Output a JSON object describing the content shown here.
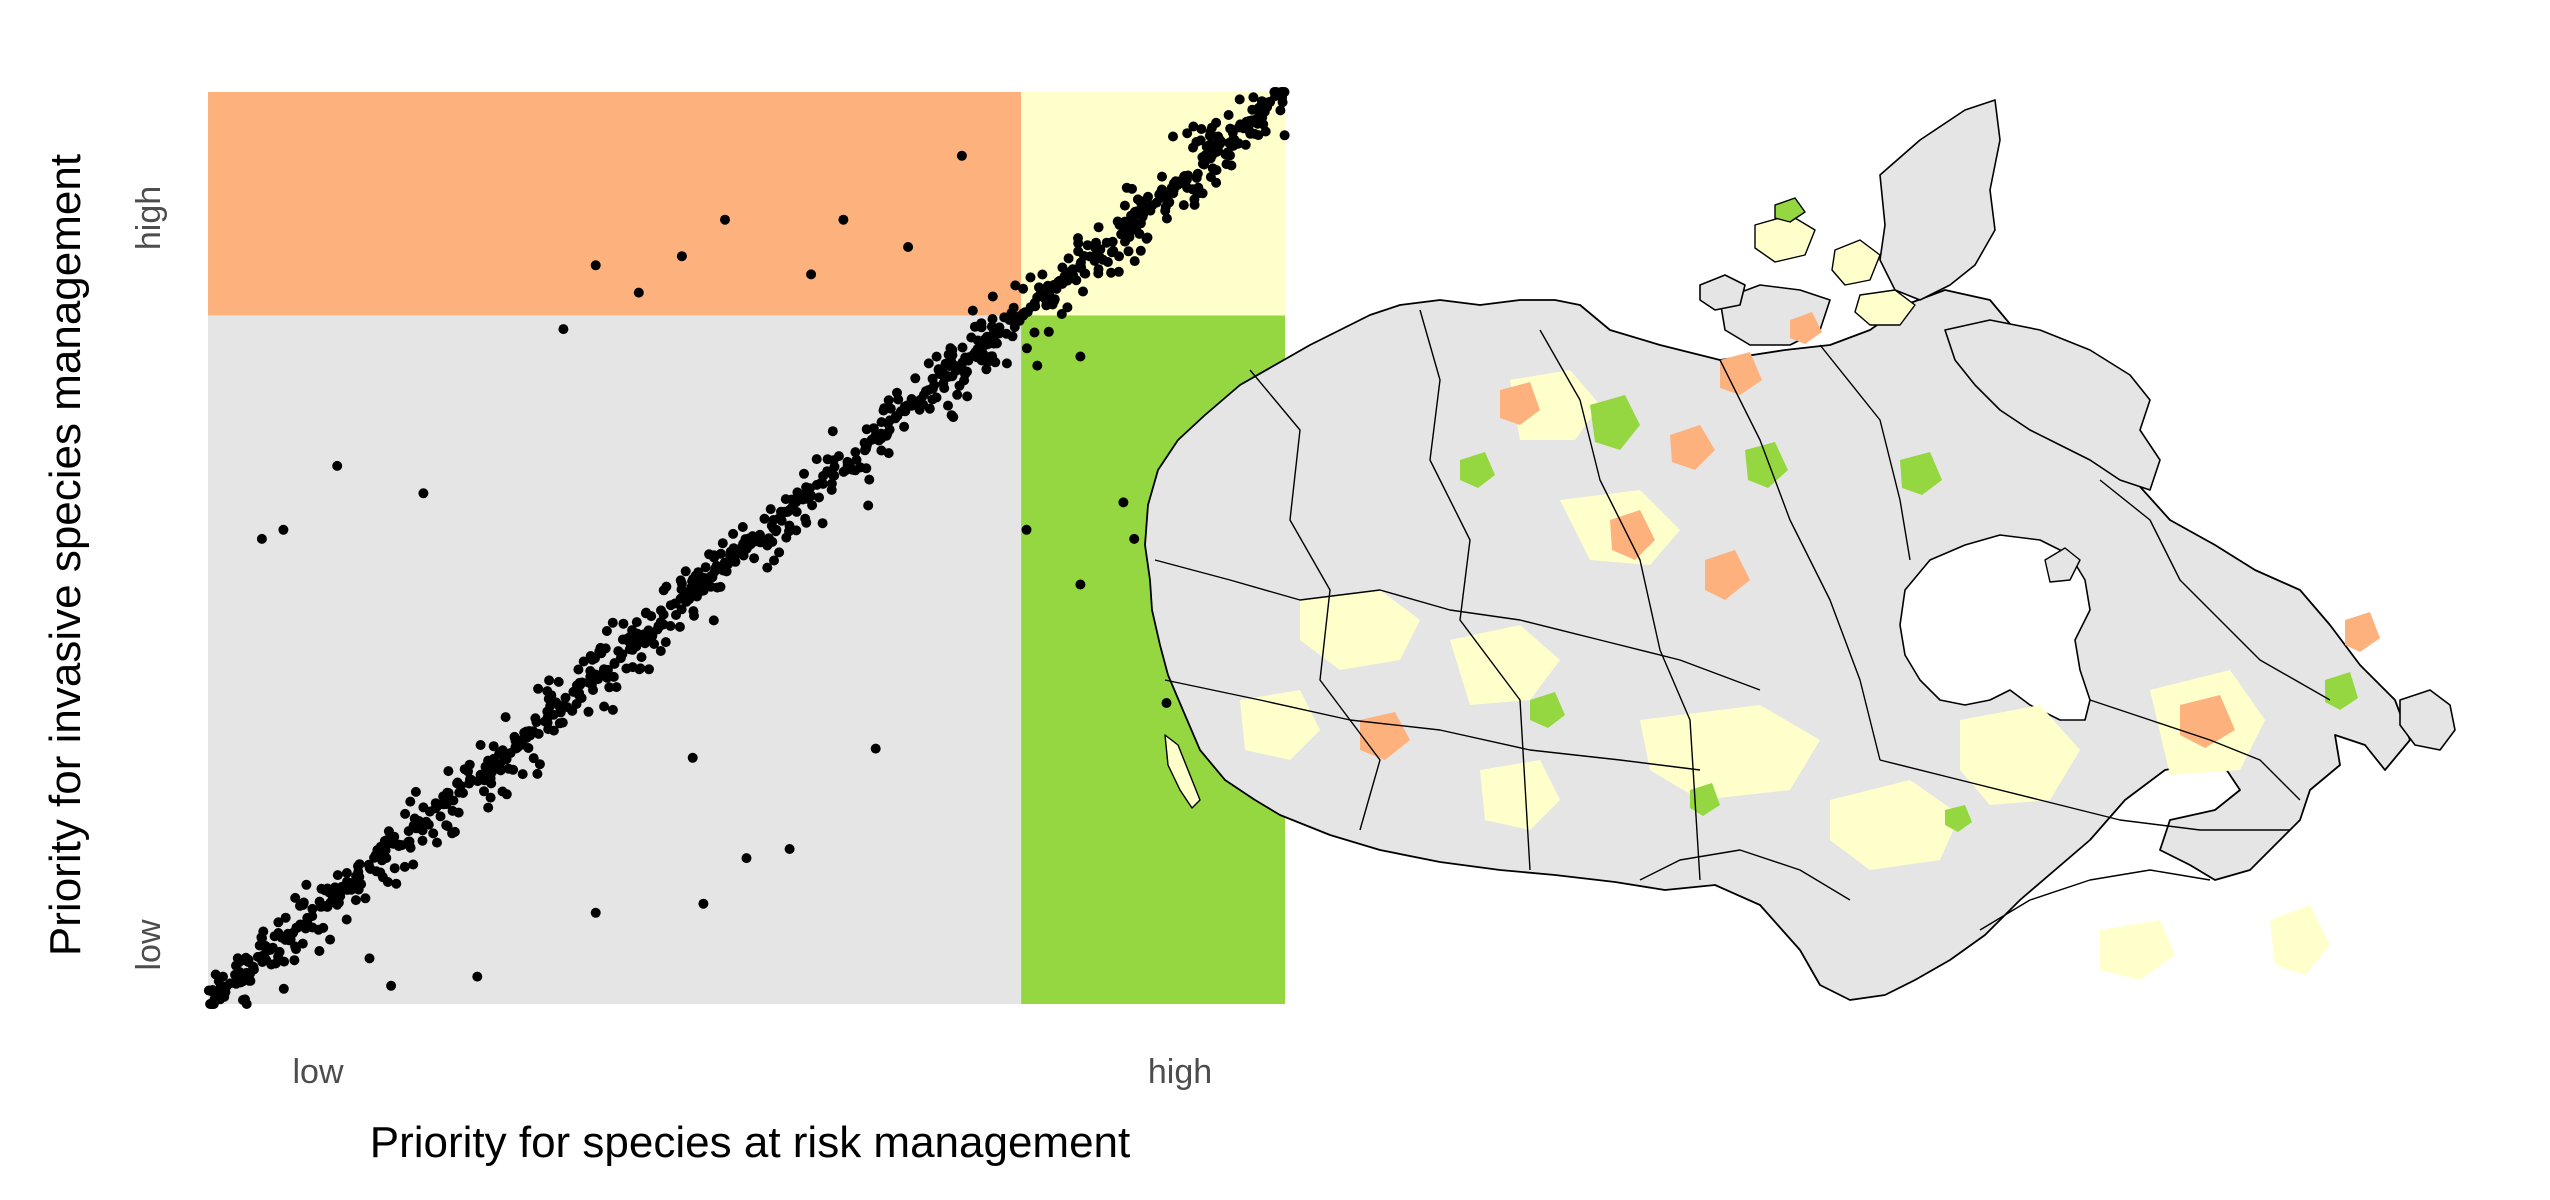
{
  "chart_data": {
    "type": "scatter",
    "xlabel": "Priority for species at risk management",
    "ylabel": "Priority for invasive species management",
    "x_ticks": [
      "low",
      "high"
    ],
    "y_ticks": [
      "low",
      "high"
    ],
    "xlim": [
      0,
      1
    ],
    "ylim": [
      0,
      1
    ],
    "x_threshold": 0.755,
    "y_threshold": 0.755,
    "grid": false,
    "legend": "none",
    "quadrant_colors": {
      "low_low": "#e5e5e5",
      "low_x_high_y": "#fdb27e",
      "high_high": "#ffffcc",
      "high_x_low_y": "#95d740"
    },
    "point_color": "#000000",
    "outliers": [
      [
        0.12,
        0.59
      ],
      [
        0.05,
        0.51
      ],
      [
        0.07,
        0.52
      ],
      [
        0.2,
        0.56
      ],
      [
        0.36,
        0.1
      ],
      [
        0.5,
        0.16
      ],
      [
        0.54,
        0.17
      ],
      [
        0.45,
        0.27
      ],
      [
        0.62,
        0.28
      ],
      [
        0.81,
        0.46
      ],
      [
        0.89,
        0.33
      ],
      [
        0.86,
        0.51
      ],
      [
        0.94,
        0.56
      ],
      [
        0.85,
        0.55
      ],
      [
        0.76,
        0.52
      ],
      [
        0.48,
        0.86
      ],
      [
        0.59,
        0.86
      ],
      [
        0.65,
        0.83
      ],
      [
        0.36,
        0.81
      ],
      [
        0.44,
        0.82
      ],
      [
        0.33,
        0.74
      ],
      [
        0.4,
        0.78
      ],
      [
        0.56,
        0.8
      ],
      [
        0.7,
        0.93
      ],
      [
        0.81,
        0.71
      ],
      [
        0.77,
        0.7
      ],
      [
        0.46,
        0.11
      ],
      [
        0.25,
        0.03
      ],
      [
        0.17,
        0.02
      ],
      [
        0.15,
        0.05
      ]
    ]
  },
  "map_data": {
    "legend": "none",
    "fill_colors": {
      "low_low": "#e5e5e5",
      "low_x_high_y": "#fdb27e",
      "high_high": "#ffffcc",
      "high_x_low_y": "#95d740"
    }
  }
}
